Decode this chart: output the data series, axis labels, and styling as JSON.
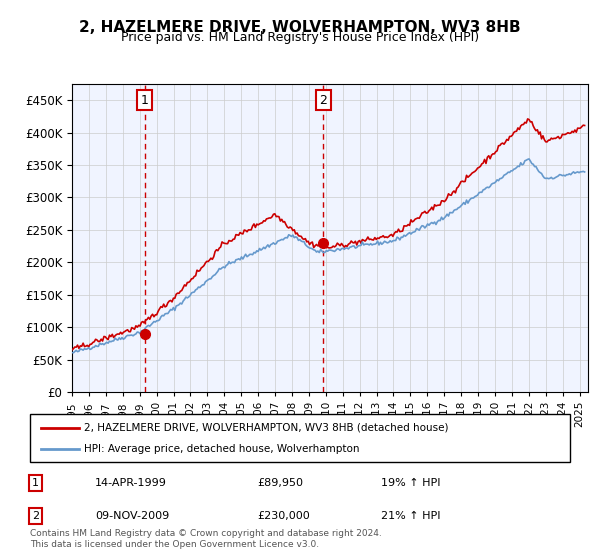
{
  "title": "2, HAZELMERE DRIVE, WOLVERHAMPTON, WV3 8HB",
  "subtitle": "Price paid vs. HM Land Registry's House Price Index (HPI)",
  "ylabel_ticks": [
    "£0",
    "£50K",
    "£100K",
    "£150K",
    "£200K",
    "£250K",
    "£300K",
    "£350K",
    "£400K",
    "£450K"
  ],
  "ytick_values": [
    0,
    50000,
    100000,
    150000,
    200000,
    250000,
    300000,
    350000,
    400000,
    450000
  ],
  "ylim": [
    0,
    475000
  ],
  "xlim_start": 1995.0,
  "xlim_end": 2025.5,
  "background_color": "#f0f4ff",
  "plot_bg_color": "#f0f4ff",
  "grid_color": "#cccccc",
  "sale1_date": 1999.29,
  "sale1_price": 89950,
  "sale2_date": 2009.86,
  "sale2_price": 230000,
  "sale1_label": "1",
  "sale2_label": "2",
  "legend_entry1": "2, HAZELMERE DRIVE, WOLVERHAMPTON, WV3 8HB (detached house)",
  "legend_entry2": "HPI: Average price, detached house, Wolverhampton",
  "annotation1": [
    "1",
    "14-APR-1999",
    "£89,950",
    "19% ↑ HPI"
  ],
  "annotation2": [
    "2",
    "09-NOV-2009",
    "£230,000",
    "21% ↑ HPI"
  ],
  "footer": "Contains HM Land Registry data © Crown copyright and database right 2024.\nThis data is licensed under the Open Government Licence v3.0.",
  "line1_color": "#cc0000",
  "line2_color": "#6699cc",
  "marker_color1": "#cc0000",
  "marker_color2": "#cc0000",
  "vline_color": "#cc0000",
  "box_color": "#cc0000"
}
